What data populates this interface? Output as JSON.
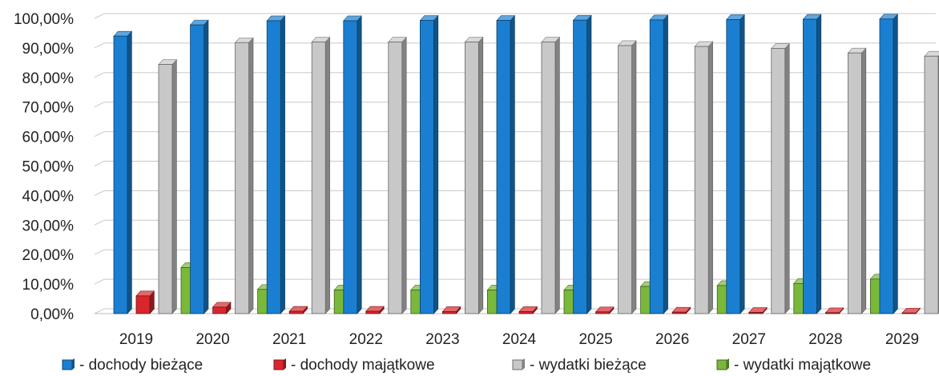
{
  "chart_data": {
    "type": "bar",
    "style": "3d-clustered-column",
    "categories": [
      "2019",
      "2020",
      "2021",
      "2022",
      "2023",
      "2024",
      "2025",
      "2026",
      "2027",
      "2028",
      "2029"
    ],
    "series": [
      {
        "name": "- dochody bieżące",
        "color": "#1a7fd0",
        "values": [
          94.0,
          97.8,
          99.2,
          99.2,
          99.3,
          99.3,
          99.4,
          99.5,
          99.6,
          99.7,
          99.8
        ]
      },
      {
        "name": "- dochody majątkowe",
        "color": "#d8262c",
        "values": [
          6.0,
          2.2,
          0.8,
          0.8,
          0.7,
          0.7,
          0.6,
          0.5,
          0.4,
          0.3,
          0.2
        ]
      },
      {
        "name": "- wydatki bieżące",
        "color": "#c8c8c8",
        "values": [
          84.4,
          91.8,
          92.0,
          92.0,
          92.0,
          92.0,
          90.8,
          90.5,
          89.8,
          88.3,
          87.2
        ]
      },
      {
        "name": "- wydatki majątkowe",
        "color": "#7ab83a",
        "values": [
          15.6,
          8.2,
          8.0,
          8.0,
          8.0,
          8.0,
          9.2,
          9.5,
          10.2,
          11.7,
          12.8
        ]
      }
    ],
    "y_ticks": [
      "0,00%",
      "10,00%",
      "20,00%",
      "30,00%",
      "40,00%",
      "50,00%",
      "60,00%",
      "70,00%",
      "80,00%",
      "90,00%",
      "100,00%"
    ],
    "ylim": [
      0,
      100
    ],
    "grid": true,
    "legend_position": "bottom",
    "title": "",
    "xlabel": "",
    "ylabel": ""
  }
}
